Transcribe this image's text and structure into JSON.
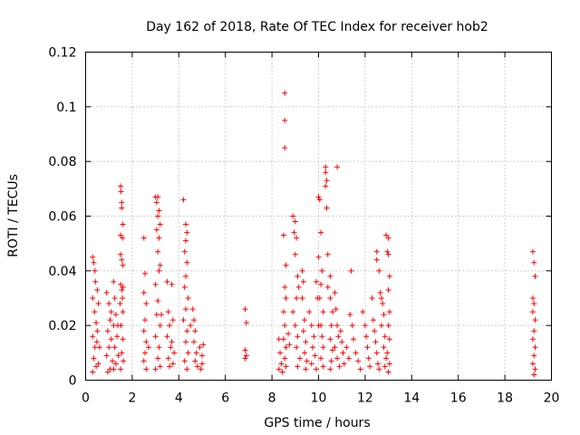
{
  "chart_data": {
    "type": "scatter",
    "title": "Day 162 of 2018, Rate Of TEC Index for receiver hob2",
    "xlabel": "GPS time / hours",
    "ylabel": "ROTI / TECUs",
    "xlim": [
      0,
      20
    ],
    "ylim": [
      0,
      0.12
    ],
    "x_ticks": [
      "0",
      "2",
      "4",
      "6",
      "8",
      "10",
      "12",
      "14",
      "16",
      "18",
      "20"
    ],
    "y_ticks": [
      "0",
      "0.02",
      "0.04",
      "0.06",
      "0.08",
      "0.1",
      "0.12"
    ],
    "grid": true,
    "marker": "plus",
    "color": "#ff0000",
    "series": [
      {
        "points": [
          [
            0.3,
            0.045
          ],
          [
            0.35,
            0.043
          ],
          [
            0.4,
            0.04
          ],
          [
            0.42,
            0.036
          ],
          [
            0.3,
            0.03
          ],
          [
            0.38,
            0.025
          ],
          [
            0.45,
            0.021
          ],
          [
            0.3,
            0.016
          ],
          [
            0.4,
            0.012
          ],
          [
            0.35,
            0.008
          ],
          [
            0.45,
            0.005
          ],
          [
            0.3,
            0.003
          ],
          [
            0.5,
            0.033
          ],
          [
            0.55,
            0.028
          ],
          [
            0.5,
            0.018
          ],
          [
            0.6,
            0.012
          ],
          [
            0.55,
            0.006
          ],
          [
            0.48,
            0.014
          ],
          [
            0.9,
            0.032
          ],
          [
            1.0,
            0.028
          ],
          [
            1.05,
            0.022
          ],
          [
            0.95,
            0.018
          ],
          [
            1.1,
            0.015
          ],
          [
            1.0,
            0.012
          ],
          [
            0.9,
            0.009
          ],
          [
            1.15,
            0.007
          ],
          [
            1.05,
            0.004
          ],
          [
            0.95,
            0.003
          ],
          [
            1.2,
            0.036
          ],
          [
            1.25,
            0.03
          ],
          [
            1.3,
            0.024
          ],
          [
            1.2,
            0.02
          ],
          [
            1.35,
            0.016
          ],
          [
            1.25,
            0.012
          ],
          [
            1.4,
            0.009
          ],
          [
            1.3,
            0.006
          ],
          [
            1.2,
            0.004
          ],
          [
            1.38,
            0.02
          ],
          [
            1.1,
            0.025
          ],
          [
            1.5,
            0.071
          ],
          [
            1.52,
            0.069
          ],
          [
            1.55,
            0.065
          ],
          [
            1.55,
            0.063
          ],
          [
            1.6,
            0.057
          ],
          [
            1.5,
            0.053
          ],
          [
            1.58,
            0.052
          ],
          [
            1.5,
            0.046
          ],
          [
            1.55,
            0.044
          ],
          [
            1.6,
            0.042
          ],
          [
            1.5,
            0.035
          ],
          [
            1.55,
            0.033
          ],
          [
            1.58,
            0.03
          ],
          [
            1.6,
            0.025
          ],
          [
            1.52,
            0.02
          ],
          [
            1.6,
            0.015
          ],
          [
            1.55,
            0.01
          ],
          [
            1.62,
            0.007
          ],
          [
            1.5,
            0.004
          ],
          [
            1.6,
            0.034
          ],
          [
            1.48,
            0.028
          ],
          [
            2.5,
            0.052
          ],
          [
            2.55,
            0.039
          ],
          [
            2.5,
            0.032
          ],
          [
            2.6,
            0.028
          ],
          [
            2.55,
            0.022
          ],
          [
            2.5,
            0.018
          ],
          [
            2.6,
            0.014
          ],
          [
            2.55,
            0.01
          ],
          [
            2.5,
            0.007
          ],
          [
            2.6,
            0.004
          ],
          [
            2.7,
            0.012
          ],
          [
            3.0,
            0.067
          ],
          [
            3.1,
            0.067
          ],
          [
            3.05,
            0.065
          ],
          [
            3.15,
            0.062
          ],
          [
            3.1,
            0.06
          ],
          [
            3.2,
            0.057
          ],
          [
            3.05,
            0.055
          ],
          [
            3.15,
            0.052
          ],
          [
            3.1,
            0.047
          ],
          [
            3.2,
            0.042
          ],
          [
            3.15,
            0.04
          ],
          [
            3.0,
            0.035
          ],
          [
            3.1,
            0.029
          ],
          [
            3.05,
            0.024
          ],
          [
            3.2,
            0.02
          ],
          [
            3.0,
            0.016
          ],
          [
            3.15,
            0.012
          ],
          [
            3.1,
            0.008
          ],
          [
            3.2,
            0.005
          ],
          [
            3.0,
            0.004
          ],
          [
            3.25,
            0.024
          ],
          [
            3.5,
            0.036
          ],
          [
            3.55,
            0.025
          ],
          [
            3.6,
            0.02
          ],
          [
            3.5,
            0.016
          ],
          [
            3.65,
            0.012
          ],
          [
            3.55,
            0.008
          ],
          [
            3.6,
            0.005
          ],
          [
            3.7,
            0.035
          ],
          [
            3.75,
            0.022
          ],
          [
            3.7,
            0.014
          ],
          [
            3.8,
            0.01
          ],
          [
            3.75,
            0.006
          ],
          [
            4.2,
            0.066
          ],
          [
            4.3,
            0.057
          ],
          [
            4.35,
            0.054
          ],
          [
            4.3,
            0.051
          ],
          [
            4.25,
            0.047
          ],
          [
            4.35,
            0.043
          ],
          [
            4.3,
            0.038
          ],
          [
            4.25,
            0.034
          ],
          [
            4.4,
            0.03
          ],
          [
            4.3,
            0.026
          ],
          [
            4.2,
            0.022
          ],
          [
            4.35,
            0.018
          ],
          [
            4.3,
            0.014
          ],
          [
            4.4,
            0.01
          ],
          [
            4.25,
            0.007
          ],
          [
            4.35,
            0.004
          ],
          [
            4.5,
            0.02
          ],
          [
            4.6,
            0.026
          ],
          [
            4.65,
            0.022
          ],
          [
            4.7,
            0.018
          ],
          [
            4.65,
            0.014
          ],
          [
            4.75,
            0.01
          ],
          [
            4.7,
            0.007
          ],
          [
            4.8,
            0.005
          ],
          [
            4.9,
            0.012
          ],
          [
            5.0,
            0.009
          ],
          [
            5.05,
            0.013
          ],
          [
            5.0,
            0.006
          ],
          [
            4.95,
            0.004
          ],
          [
            6.85,
            0.026
          ],
          [
            6.9,
            0.021
          ],
          [
            6.85,
            0.011
          ],
          [
            6.9,
            0.009
          ],
          [
            6.85,
            0.008
          ],
          [
            8.55,
            0.105
          ],
          [
            8.55,
            0.095
          ],
          [
            8.55,
            0.085
          ],
          [
            8.5,
            0.053
          ],
          [
            8.6,
            0.042
          ],
          [
            8.55,
            0.034
          ],
          [
            8.6,
            0.03
          ],
          [
            8.5,
            0.025
          ],
          [
            8.55,
            0.02
          ],
          [
            8.5,
            0.015
          ],
          [
            8.6,
            0.012
          ],
          [
            8.55,
            0.008
          ],
          [
            8.6,
            0.005
          ],
          [
            8.45,
            0.003
          ],
          [
            8.3,
            0.015
          ],
          [
            8.35,
            0.01
          ],
          [
            8.4,
            0.006
          ],
          [
            8.3,
            0.004
          ],
          [
            8.7,
            0.017
          ],
          [
            8.75,
            0.013
          ],
          [
            8.9,
            0.06
          ],
          [
            9.0,
            0.058
          ],
          [
            8.95,
            0.054
          ],
          [
            9.05,
            0.052
          ],
          [
            9.0,
            0.046
          ],
          [
            9.1,
            0.038
          ],
          [
            9.15,
            0.034
          ],
          [
            9.05,
            0.03
          ],
          [
            8.9,
            0.025
          ],
          [
            9.0,
            0.02
          ],
          [
            9.1,
            0.016
          ],
          [
            9.05,
            0.012
          ],
          [
            9.2,
            0.008
          ],
          [
            9.1,
            0.005
          ],
          [
            9.3,
            0.04
          ],
          [
            9.35,
            0.036
          ],
          [
            9.3,
            0.03
          ],
          [
            9.4,
            0.022
          ],
          [
            9.35,
            0.018
          ],
          [
            9.45,
            0.014
          ],
          [
            9.4,
            0.01
          ],
          [
            9.5,
            0.007
          ],
          [
            9.45,
            0.004
          ],
          [
            9.6,
            0.025
          ],
          [
            9.7,
            0.02
          ],
          [
            9.8,
            0.016
          ],
          [
            9.75,
            0.012
          ],
          [
            9.85,
            0.009
          ],
          [
            9.7,
            0.006
          ],
          [
            9.9,
            0.004
          ],
          [
            9.9,
            0.036
          ],
          [
            9.95,
            0.03
          ],
          [
            10.0,
            0.02
          ],
          [
            10.0,
            0.067
          ],
          [
            10.05,
            0.066
          ],
          [
            10.1,
            0.054
          ],
          [
            10.0,
            0.045
          ],
          [
            10.15,
            0.04
          ],
          [
            10.1,
            0.035
          ],
          [
            10.05,
            0.03
          ],
          [
            10.2,
            0.025
          ],
          [
            10.1,
            0.02
          ],
          [
            10.15,
            0.016
          ],
          [
            10.2,
            0.012
          ],
          [
            10.1,
            0.008
          ],
          [
            10.2,
            0.005
          ],
          [
            10.3,
            0.078
          ],
          [
            10.3,
            0.076
          ],
          [
            10.35,
            0.073
          ],
          [
            10.3,
            0.071
          ],
          [
            10.35,
            0.063
          ],
          [
            10.4,
            0.046
          ],
          [
            10.5,
            0.038
          ],
          [
            10.4,
            0.034
          ],
          [
            10.5,
            0.03
          ],
          [
            10.6,
            0.025
          ],
          [
            10.55,
            0.02
          ],
          [
            10.5,
            0.015
          ],
          [
            10.6,
            0.011
          ],
          [
            10.55,
            0.007
          ],
          [
            10.5,
            0.004
          ],
          [
            10.8,
            0.078
          ],
          [
            10.7,
            0.032
          ],
          [
            10.75,
            0.026
          ],
          [
            10.8,
            0.02
          ],
          [
            10.85,
            0.016
          ],
          [
            10.7,
            0.012
          ],
          [
            10.8,
            0.008
          ],
          [
            10.9,
            0.005
          ],
          [
            10.95,
            0.018
          ],
          [
            11.0,
            0.014
          ],
          [
            11.05,
            0.01
          ],
          [
            11.1,
            0.006
          ],
          [
            11.2,
            0.012
          ],
          [
            11.3,
            0.008
          ],
          [
            11.35,
            0.024
          ],
          [
            11.4,
            0.04
          ],
          [
            11.45,
            0.02
          ],
          [
            11.5,
            0.015
          ],
          [
            11.6,
            0.01
          ],
          [
            11.7,
            0.007
          ],
          [
            11.8,
            0.004
          ],
          [
            11.9,
            0.025
          ],
          [
            12.0,
            0.02
          ],
          [
            12.05,
            0.016
          ],
          [
            12.1,
            0.012
          ],
          [
            12.15,
            0.008
          ],
          [
            12.2,
            0.005
          ],
          [
            12.3,
            0.03
          ],
          [
            12.35,
            0.022
          ],
          [
            12.4,
            0.018
          ],
          [
            12.45,
            0.014
          ],
          [
            12.5,
            0.01
          ],
          [
            12.55,
            0.006
          ],
          [
            12.6,
            0.004
          ],
          [
            12.5,
            0.047
          ],
          [
            12.5,
            0.044
          ],
          [
            12.6,
            0.04
          ],
          [
            12.65,
            0.032
          ],
          [
            12.7,
            0.03
          ],
          [
            12.75,
            0.028
          ],
          [
            12.8,
            0.024
          ],
          [
            12.7,
            0.02
          ],
          [
            12.85,
            0.016
          ],
          [
            12.8,
            0.012
          ],
          [
            12.9,
            0.008
          ],
          [
            12.85,
            0.005
          ],
          [
            12.9,
            0.053
          ],
          [
            13.0,
            0.052
          ],
          [
            12.95,
            0.047
          ],
          [
            13.0,
            0.046
          ],
          [
            13.05,
            0.038
          ],
          [
            13.0,
            0.033
          ],
          [
            13.05,
            0.025
          ],
          [
            13.0,
            0.02
          ],
          [
            13.05,
            0.015
          ],
          [
            12.95,
            0.01
          ],
          [
            13.05,
            0.006
          ],
          [
            13.0,
            0.003
          ],
          [
            19.2,
            0.047
          ],
          [
            19.25,
            0.043
          ],
          [
            19.3,
            0.038
          ],
          [
            19.2,
            0.03
          ],
          [
            19.25,
            0.028
          ],
          [
            19.2,
            0.025
          ],
          [
            19.3,
            0.022
          ],
          [
            19.25,
            0.018
          ],
          [
            19.2,
            0.015
          ],
          [
            19.3,
            0.012
          ],
          [
            19.25,
            0.009
          ],
          [
            19.2,
            0.006
          ],
          [
            19.3,
            0.004
          ],
          [
            19.25,
            0.002
          ]
        ]
      }
    ]
  }
}
